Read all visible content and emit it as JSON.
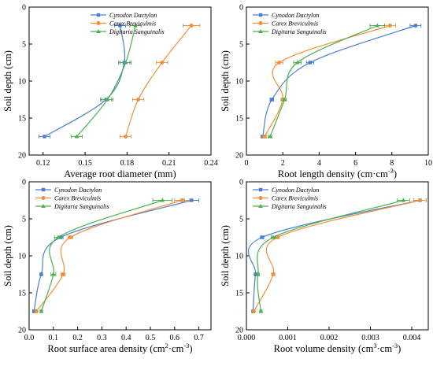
{
  "chart_data": [
    {
      "type": "line",
      "xlabel": "Average root diameter (mm)",
      "ylabel": "Soil depth (cm)",
      "xlim": [
        0.11,
        0.24
      ],
      "ylim": [
        0,
        20
      ],
      "xticks": [
        0.12,
        0.15,
        0.18,
        0.21,
        0.24
      ],
      "xtick_labels": [
        "0.12",
        "0.15",
        "0.18",
        "0.21",
        "0.24"
      ],
      "yticks": [
        0,
        5,
        10,
        15,
        20
      ],
      "ytick_labels": [
        "0",
        "5",
        "10",
        "15",
        "20"
      ],
      "y_inverted": true,
      "x_axis_position": "bottom",
      "depth": [
        2.5,
        7.5,
        12.5,
        17.5
      ],
      "series": [
        {
          "name": "Cynodon Dactylon",
          "color": "#4a7fd0",
          "marker": "square",
          "values": [
            0.175,
            0.178,
            0.165,
            0.121
          ],
          "errors": [
            0.004,
            0.004,
            0.004,
            0.004
          ]
        },
        {
          "name": "Carex Breviculmis",
          "color": "#f0913a",
          "marker": "circle",
          "values": [
            0.226,
            0.205,
            0.188,
            0.179
          ],
          "errors": [
            0.006,
            0.004,
            0.004,
            0.004
          ]
        },
        {
          "name": "Digitaria Sanguinalis",
          "color": "#4caf50",
          "marker": "triangle",
          "values": [
            0.186,
            0.179,
            0.166,
            0.144
          ],
          "errors": [
            0.004,
            0.004,
            0.004,
            0.004
          ]
        }
      ],
      "legend": "top-right",
      "grid": false
    },
    {
      "type": "line",
      "xlabel": "Root length density (cm·cm⁻³)",
      "ylabel": "Soil depth (cm)",
      "xlim": [
        0,
        10
      ],
      "ylim": [
        0,
        20
      ],
      "xticks": [
        0,
        2,
        4,
        6,
        8,
        10
      ],
      "xtick_labels": [
        "0",
        "2",
        "4",
        "6",
        "8",
        "10"
      ],
      "yticks": [
        0,
        5,
        10,
        15,
        20
      ],
      "ytick_labels": [
        "0",
        "5",
        "10",
        "15",
        "20"
      ],
      "y_inverted": true,
      "x_axis_position": "bottom",
      "depth": [
        2.5,
        7.5,
        12.5,
        17.5
      ],
      "series": [
        {
          "name": "Cynodon Dactylon",
          "color": "#4a7fd0",
          "marker": "square",
          "values": [
            9.3,
            3.5,
            1.4,
            0.9
          ],
          "errors": [
            0.3,
            0.2,
            0.1,
            0.1
          ]
        },
        {
          "name": "Carex Breviculmis",
          "color": "#f0913a",
          "marker": "circle",
          "values": [
            7.9,
            1.8,
            2.0,
            1.0
          ],
          "errors": [
            0.3,
            0.2,
            0.1,
            0.1
          ]
        },
        {
          "name": "Digitaria Sanguinalis",
          "color": "#4caf50",
          "marker": "triangle",
          "values": [
            7.2,
            2.8,
            2.1,
            1.3
          ],
          "errors": [
            0.4,
            0.2,
            0.1,
            0.1
          ]
        }
      ],
      "legend": "top-left",
      "grid": false
    },
    {
      "type": "line",
      "xlabel": "Root surface area density (cm²·cm⁻³)",
      "ylabel": "Soil depth (cm)",
      "xlim": [
        0,
        0.75
      ],
      "ylim": [
        0,
        20
      ],
      "xticks": [
        0,
        0.1,
        0.2,
        0.3,
        0.4,
        0.5,
        0.6,
        0.7
      ],
      "xtick_labels": [
        "0.0",
        "0.1",
        "0.2",
        "0.3",
        "0.4",
        "0.5",
        "0.6",
        "0.7"
      ],
      "yticks": [
        0,
        5,
        10,
        15,
        20
      ],
      "ytick_labels": [
        "0",
        "5",
        "10",
        "15",
        "20"
      ],
      "y_inverted": true,
      "x_axis_position": "bottom",
      "depth": [
        2.5,
        7.5,
        12.5,
        17.5
      ],
      "series": [
        {
          "name": "Cynodon Dactylon",
          "color": "#4a7fd0",
          "marker": "square",
          "values": [
            0.67,
            0.13,
            0.05,
            0.02
          ],
          "errors": [
            0.03,
            0.01,
            0.005,
            0.005
          ]
        },
        {
          "name": "Carex Breviculmis",
          "color": "#f0913a",
          "marker": "circle",
          "values": [
            0.63,
            0.17,
            0.14,
            0.03
          ],
          "errors": [
            0.03,
            0.01,
            0.008,
            0.005
          ]
        },
        {
          "name": "Digitaria Sanguinalis",
          "color": "#4caf50",
          "marker": "triangle",
          "values": [
            0.55,
            0.12,
            0.1,
            0.05
          ],
          "errors": [
            0.04,
            0.015,
            0.01,
            0.005
          ]
        }
      ],
      "legend": "top-left",
      "grid": false
    },
    {
      "type": "line",
      "xlabel": "Root volume density (cm³·cm⁻³)",
      "ylabel": "Soil depth (cm)",
      "xlim": [
        0,
        0.0044
      ],
      "ylim": [
        0,
        20
      ],
      "xticks": [
        0,
        0.001,
        0.002,
        0.003,
        0.004
      ],
      "xtick_labels": [
        "0.000",
        "0.001",
        "0.002",
        "0.003",
        "0.004"
      ],
      "yticks": [
        0,
        5,
        10,
        15,
        20
      ],
      "ytick_labels": [
        "0",
        "5",
        "10",
        "15",
        "20"
      ],
      "y_inverted": true,
      "x_axis_position": "bottom",
      "depth": [
        2.5,
        7.5,
        12.5,
        17.5
      ],
      "series": [
        {
          "name": "Cynodon Dactylon",
          "color": "#4a7fd0",
          "marker": "square",
          "values": [
            0.0042,
            0.00038,
            0.00022,
            0.00016
          ],
          "errors": [
            0.00015,
            4e-05,
            3e-05,
            2e-05
          ]
        },
        {
          "name": "Carex Breviculmis",
          "color": "#f0913a",
          "marker": "circle",
          "values": [
            0.0042,
            0.00075,
            0.00065,
            0.00018
          ],
          "errors": [
            0.00015,
            5e-05,
            4e-05,
            2e-05
          ]
        },
        {
          "name": "Digitaria Sanguinalis",
          "color": "#4caf50",
          "marker": "triangle",
          "values": [
            0.0038,
            0.00065,
            0.00028,
            0.00035
          ],
          "errors": [
            0.00015,
            5e-05,
            3e-05,
            3e-05
          ]
        }
      ],
      "legend": "top-left",
      "grid": false
    }
  ]
}
